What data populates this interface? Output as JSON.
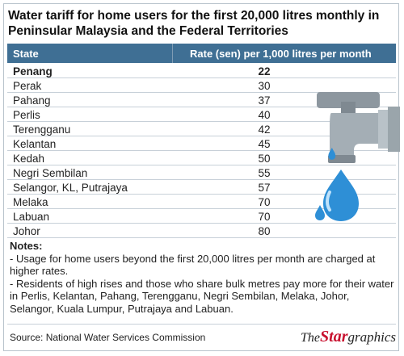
{
  "title": "Water tariff for home users for the first 20,000 litres monthly in Peninsular Malaysia and the Federal Territories",
  "table": {
    "headers": [
      "State",
      "Rate (sen) per 1,000 litres per month"
    ],
    "rows": [
      {
        "state": "Penang",
        "rate": "22"
      },
      {
        "state": "Perak",
        "rate": "30"
      },
      {
        "state": "Pahang",
        "rate": "37"
      },
      {
        "state": "Perlis",
        "rate": "40"
      },
      {
        "state": "Terengganu",
        "rate": "42"
      },
      {
        "state": "Kelantan",
        "rate": "45"
      },
      {
        "state": "Kedah",
        "rate": "50"
      },
      {
        "state": "Negri Sembilan",
        "rate": "55"
      },
      {
        "state": "Selangor, KL, Putrajaya",
        "rate": "57"
      },
      {
        "state": "Melaka",
        "rate": "70"
      },
      {
        "state": "Labuan",
        "rate": "70"
      },
      {
        "state": "Johor",
        "rate": "80"
      }
    ]
  },
  "notes": {
    "title": "Notes:",
    "items": [
      "- Usage for home users beyond the first 20,000 litres per month are charged at higher rates.",
      "- Residents of high rises and those who share bulk metres pay more for their water in Perlis, Kelantan, Pahang, Terengganu, Negri Sembilan, Melaka, Johor, Selangor, Kuala Lumpur, Putrajaya and Labuan."
    ]
  },
  "source": "Source: National Water Services Commission",
  "brand": {
    "the": "The",
    "star": "Star",
    "graphics": "graphics"
  },
  "colors": {
    "header_bg": "#3f6f94",
    "highlight_row": "Penang",
    "drop": "#2e8fd6",
    "tap_metal": "#9aa5ad"
  },
  "chart_data": {
    "type": "table",
    "title": "Water tariff for home users for the first 20,000 litres monthly in Peninsular Malaysia and the Federal Territories",
    "columns": [
      "State",
      "Rate (sen) per 1,000 litres per month"
    ],
    "categories": [
      "Penang",
      "Perak",
      "Pahang",
      "Perlis",
      "Terengganu",
      "Kelantan",
      "Kedah",
      "Negri Sembilan",
      "Selangor, KL, Putrajaya",
      "Melaka",
      "Labuan",
      "Johor"
    ],
    "values": [
      22,
      30,
      37,
      40,
      42,
      45,
      50,
      55,
      57,
      70,
      70,
      80
    ]
  }
}
